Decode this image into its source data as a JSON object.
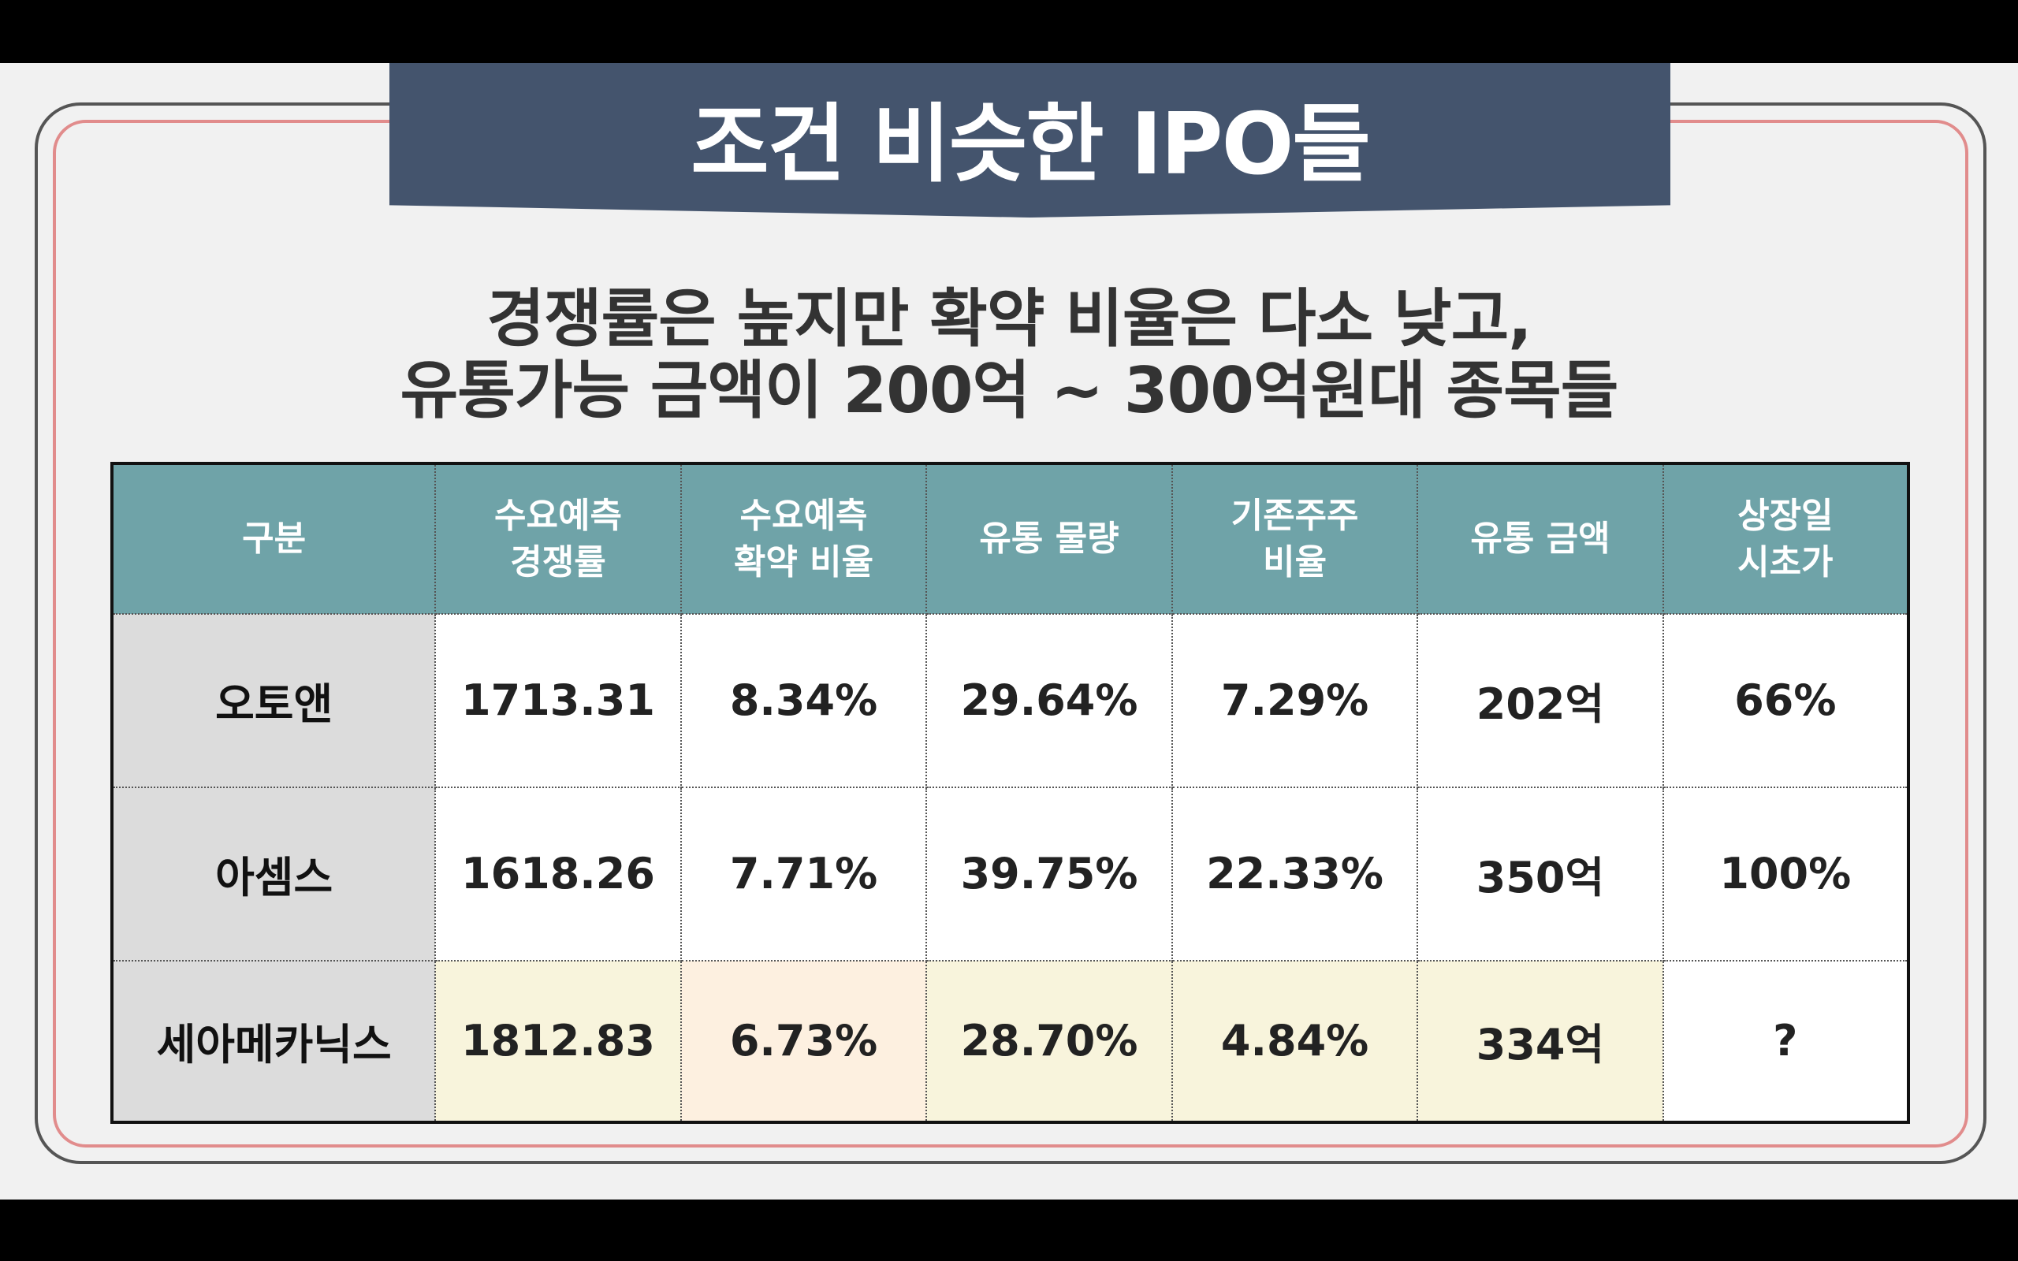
{
  "title": "조건 비슷한 IPO들",
  "subtitle_line1": "경쟁률은 높지만 확약 비율은 다소 낮고,",
  "subtitle_line2": "유통가능 금액이 200억 ~ 300억원대 종목들",
  "table": {
    "headers": [
      {
        "line1": "구분",
        "line2": ""
      },
      {
        "line1": "수요예측",
        "line2": "경쟁률"
      },
      {
        "line1": "수요예측",
        "line2": "확약 비율"
      },
      {
        "line1": "유통 물량",
        "line2": ""
      },
      {
        "line1": "기존주주",
        "line2": "비율"
      },
      {
        "line1": "유통 금액",
        "line2": ""
      },
      {
        "line1": "상장일",
        "line2": "시초가"
      }
    ],
    "rows": [
      [
        "오토앤",
        "1713.31",
        "8.34%",
        "29.64%",
        "7.29%",
        "202억",
        "66%"
      ],
      [
        "아셈스",
        "1618.26",
        "7.71%",
        "39.75%",
        "22.33%",
        "350억",
        "100%"
      ],
      [
        "세아메카닉스",
        "1812.83",
        "6.73%",
        "28.70%",
        "4.84%",
        "334억",
        "?"
      ]
    ]
  },
  "colors": {
    "banner": "#44546d",
    "header": "#6fa3a8",
    "frame_outer": "#555555",
    "frame_inner": "#e18c8c",
    "highlight_yellow": "#f8f4dc",
    "highlight_peach": "#fdf0e0"
  }
}
